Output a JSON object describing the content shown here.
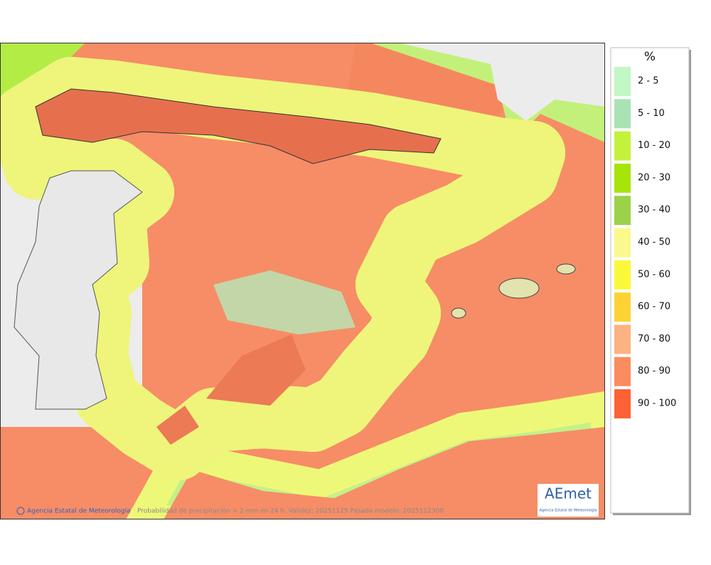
{
  "legend": {
    "title": "%",
    "items": [
      {
        "label": "2 - 5",
        "color": "#c2f7c6"
      },
      {
        "label": "5 - 10",
        "color": "#a9e3b4"
      },
      {
        "label": "10 - 20",
        "color": "#c4f23c"
      },
      {
        "label": "20 - 30",
        "color": "#a8e40a"
      },
      {
        "label": "30 - 40",
        "color": "#9cd14a"
      },
      {
        "label": "40 - 50",
        "color": "#fbf88e"
      },
      {
        "label": "50 - 60",
        "color": "#fbf83a"
      },
      {
        "label": "60 - 70",
        "color": "#fdd235"
      },
      {
        "label": "70 - 80",
        "color": "#fdb282"
      },
      {
        "label": "80 - 90",
        "color": "#fb8c5f"
      },
      {
        "label": "90 - 100",
        "color": "#fc6236"
      }
    ]
  },
  "footer": {
    "credit": "Agencia Estatal de Meteorología",
    "caption": "Probabilidad de precipitación > 2 mm en 24 h. Validez: 20251125 Pasada modelo: 2025112300"
  },
  "logo": {
    "name": "AEmet",
    "subtitle": "Agencia Estatal de Meteorología"
  }
}
